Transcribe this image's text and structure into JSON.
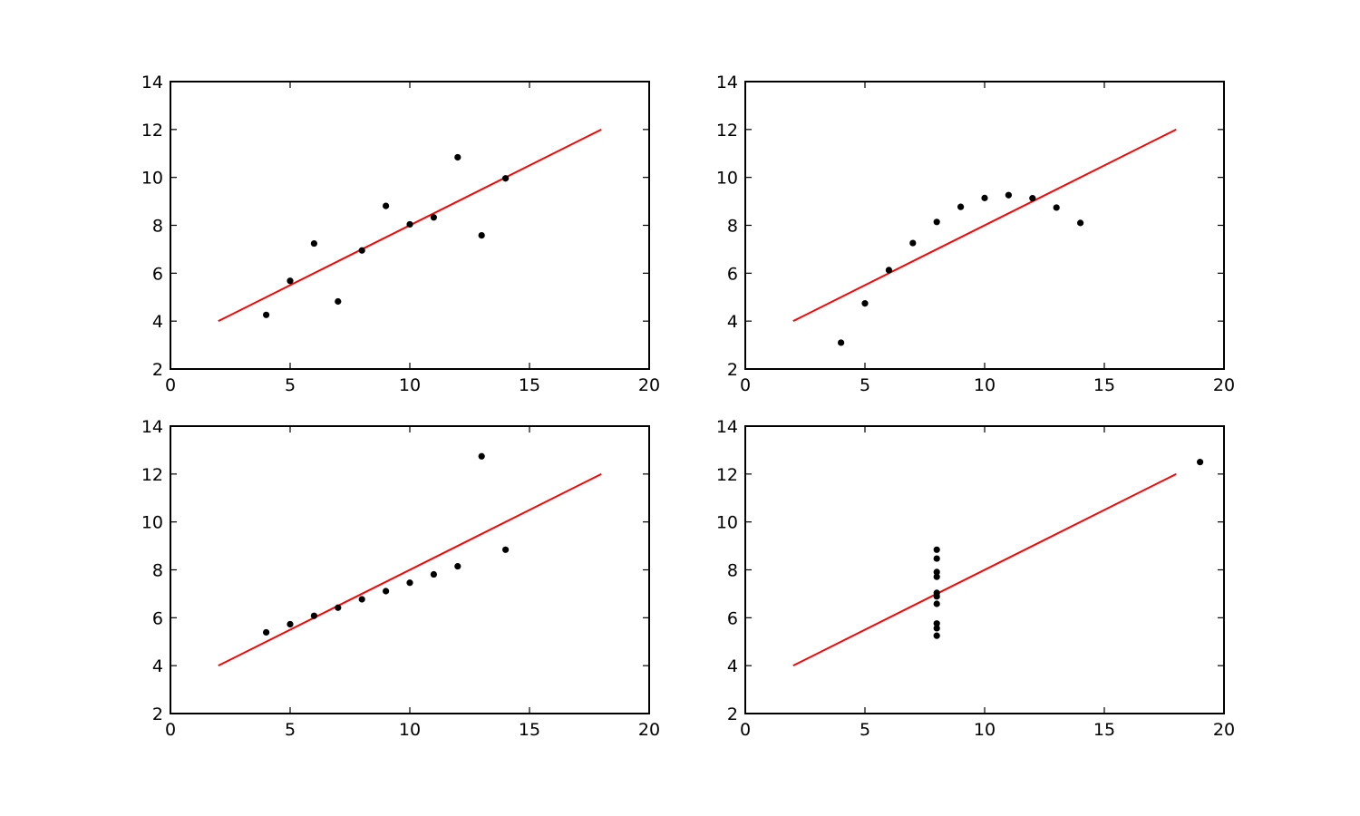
{
  "chart_data": [
    {
      "type": "scatter",
      "xlim": [
        0,
        20
      ],
      "ylim": [
        2,
        14
      ],
      "xticks": [
        0,
        5,
        10,
        15,
        20
      ],
      "yticks": [
        2,
        4,
        6,
        8,
        10,
        12,
        14
      ],
      "grid": false,
      "points": {
        "x": [
          10,
          8,
          13,
          9,
          11,
          14,
          6,
          4,
          12,
          7,
          5
        ],
        "y": [
          8.04,
          6.95,
          7.58,
          8.81,
          8.33,
          9.96,
          7.24,
          4.26,
          10.84,
          4.82,
          5.68
        ]
      },
      "fit_line": {
        "x": [
          2,
          18
        ],
        "y": [
          4,
          12
        ]
      }
    },
    {
      "type": "scatter",
      "xlim": [
        0,
        20
      ],
      "ylim": [
        2,
        14
      ],
      "xticks": [
        0,
        5,
        10,
        15,
        20
      ],
      "yticks": [
        2,
        4,
        6,
        8,
        10,
        12,
        14
      ],
      "grid": false,
      "points": {
        "x": [
          10,
          8,
          13,
          9,
          11,
          14,
          6,
          4,
          12,
          7,
          5
        ],
        "y": [
          9.14,
          8.14,
          8.74,
          8.77,
          9.26,
          8.1,
          6.13,
          3.1,
          9.13,
          7.26,
          4.74
        ]
      },
      "fit_line": {
        "x": [
          2,
          18
        ],
        "y": [
          4,
          12
        ]
      }
    },
    {
      "type": "scatter",
      "xlim": [
        0,
        20
      ],
      "ylim": [
        2,
        14
      ],
      "xticks": [
        0,
        5,
        10,
        15,
        20
      ],
      "yticks": [
        2,
        4,
        6,
        8,
        10,
        12,
        14
      ],
      "grid": false,
      "points": {
        "x": [
          10,
          8,
          13,
          9,
          11,
          14,
          6,
          4,
          12,
          7,
          5
        ],
        "y": [
          7.46,
          6.77,
          12.74,
          7.11,
          7.81,
          8.84,
          6.08,
          5.39,
          8.15,
          6.42,
          5.73
        ]
      },
      "fit_line": {
        "x": [
          2,
          18
        ],
        "y": [
          4,
          12
        ]
      }
    },
    {
      "type": "scatter",
      "xlim": [
        0,
        20
      ],
      "ylim": [
        2,
        14
      ],
      "xticks": [
        0,
        5,
        10,
        15,
        20
      ],
      "yticks": [
        2,
        4,
        6,
        8,
        10,
        12,
        14
      ],
      "grid": false,
      "points": {
        "x": [
          8,
          8,
          8,
          8,
          8,
          8,
          8,
          19,
          8,
          8,
          8
        ],
        "y": [
          6.58,
          5.76,
          7.71,
          8.84,
          8.47,
          7.04,
          5.25,
          12.5,
          5.56,
          7.91,
          6.89
        ]
      },
      "fit_line": {
        "x": [
          2,
          18
        ],
        "y": [
          4,
          12
        ]
      }
    }
  ],
  "colors": {
    "fit_line": "#ff0000",
    "points": "#000000",
    "frame": "#000000",
    "background": "#ffffff"
  }
}
